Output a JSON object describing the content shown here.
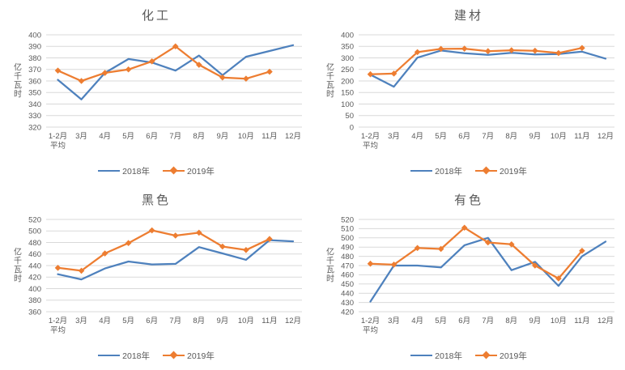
{
  "page": {
    "background": "#FFFFFF"
  },
  "colors": {
    "series_2018": "#4E81BD",
    "series_2019": "#ED7D31",
    "gridline": "#D9D9D9",
    "axis_text": "#595959",
    "title_text": "#595959"
  },
  "chart_data": [
    {
      "type": "line",
      "title": "化工",
      "ylabel": "亿千瓦时",
      "ylim": [
        320,
        400
      ],
      "ytick_step": 10,
      "grid": "horizontal",
      "legend_position": "bottom",
      "categories": [
        "1-2月平均",
        "3月",
        "4月",
        "5月",
        "6月",
        "7月",
        "8月",
        "9月",
        "10月",
        "11月",
        "12月"
      ],
      "x_first_label_lines": [
        "1-2月",
        "平均"
      ],
      "series": [
        {
          "name": "2018年",
          "color_key": "series_2018",
          "marker": "none",
          "values": [
            361,
            344,
            367,
            379,
            376,
            369,
            382,
            365,
            381,
            386,
            391
          ]
        },
        {
          "name": "2019年",
          "color_key": "series_2019",
          "marker": "diamond",
          "values": [
            369,
            360,
            367,
            370,
            377,
            390,
            374,
            363,
            362,
            368,
            null
          ]
        }
      ]
    },
    {
      "type": "line",
      "title": "建材",
      "ylabel": "亿千瓦时",
      "ylim": [
        0,
        400
      ],
      "ytick_step": 50,
      "grid": "horizontal",
      "legend_position": "bottom",
      "categories": [
        "1-2月平均",
        "3月",
        "4月",
        "5月",
        "6月",
        "7月",
        "8月",
        "9月",
        "10月",
        "11月",
        "12月"
      ],
      "x_first_label_lines": [
        "1-2月",
        "平均"
      ],
      "series": [
        {
          "name": "2018年",
          "color_key": "series_2018",
          "marker": "none",
          "values": [
            227,
            175,
            301,
            332,
            320,
            313,
            322,
            315,
            317,
            327,
            297
          ]
        },
        {
          "name": "2019年",
          "color_key": "series_2019",
          "marker": "diamond",
          "values": [
            229,
            232,
            325,
            339,
            340,
            329,
            333,
            331,
            321,
            343,
            null
          ]
        }
      ]
    },
    {
      "type": "line",
      "title": "黑色",
      "ylabel": "亿千瓦时",
      "ylim": [
        360,
        520
      ],
      "ytick_step": 20,
      "grid": "horizontal",
      "legend_position": "bottom",
      "categories": [
        "1-2月平均",
        "3月",
        "4月",
        "5月",
        "6月",
        "7月",
        "8月",
        "9月",
        "10月",
        "11月",
        "12月"
      ],
      "x_first_label_lines": [
        "1-2月",
        "平均"
      ],
      "series": [
        {
          "name": "2018年",
          "color_key": "series_2018",
          "marker": "none",
          "values": [
            425,
            416,
            435,
            447,
            442,
            443,
            472,
            461,
            450,
            484,
            482
          ]
        },
        {
          "name": "2019年",
          "color_key": "series_2019",
          "marker": "diamond",
          "values": [
            436,
            431,
            461,
            479,
            501,
            492,
            497,
            473,
            467,
            486,
            null
          ]
        }
      ]
    },
    {
      "type": "line",
      "title": "有色",
      "ylabel": "亿千瓦时",
      "ylim": [
        420,
        520
      ],
      "ytick_step": 10,
      "grid": "horizontal",
      "legend_position": "bottom",
      "categories": [
        "1-2月平均",
        "3月",
        "4月",
        "5月",
        "6月",
        "7月",
        "8月",
        "9月",
        "10月",
        "11月",
        "12月"
      ],
      "x_first_label_lines": [
        "1-2月",
        "平均"
      ],
      "series": [
        {
          "name": "2018年",
          "color_key": "series_2018",
          "marker": "none",
          "values": [
            431,
            470,
            470,
            468,
            492,
            500,
            465,
            474,
            448,
            480,
            496
          ]
        },
        {
          "name": "2019年",
          "color_key": "series_2019",
          "marker": "diamond",
          "values": [
            472,
            471,
            489,
            488,
            511,
            495,
            493,
            470,
            456,
            486,
            null
          ]
        }
      ]
    }
  ]
}
